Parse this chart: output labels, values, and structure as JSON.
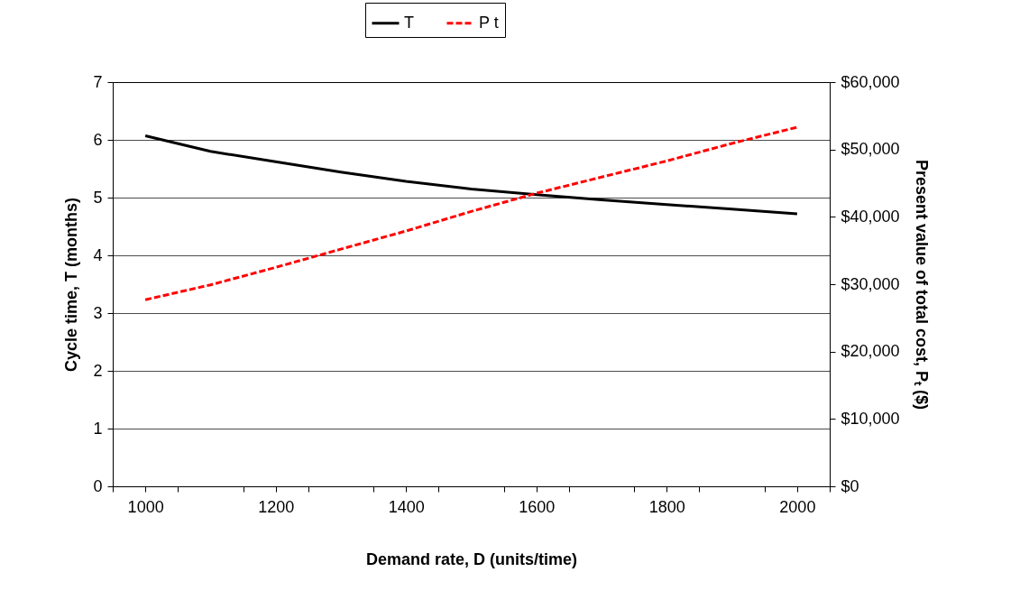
{
  "chart_data": {
    "type": "line",
    "xlabel": "Demand rate, D  (units/time)",
    "ylabel": "Cycle time, T  (months)",
    "y2label": "Present value of total cost, Pₜ  ($)",
    "x": [
      1000,
      1100,
      1200,
      1300,
      1400,
      1500,
      1600,
      1700,
      1800,
      1900,
      2000
    ],
    "series": [
      {
        "name": "T",
        "color": "#000000",
        "line_style": "solid",
        "values": [
          6.07,
          5.8,
          5.62,
          5.44,
          5.28,
          5.15,
          5.05,
          4.96,
          4.88,
          4.8,
          4.72
        ]
      },
      {
        "name": "P t",
        "color": "#ff0000",
        "line_style": "dashed",
        "axis": "y2",
        "values": [
          27700,
          29900,
          32500,
          35200,
          37900,
          40800,
          43500,
          45900,
          48300,
          50900,
          53300
        ]
      }
    ],
    "xlim": [
      950,
      2050
    ],
    "xticks": [
      {
        "value": 950,
        "label": null
      },
      1000,
      {
        "value": 1050,
        "label": null
      },
      {
        "value": 1150,
        "label": null
      },
      1200,
      {
        "value": 1250,
        "label": null
      },
      {
        "value": 1350,
        "label": null
      },
      1400,
      {
        "value": 1450,
        "label": null
      },
      {
        "value": 1550,
        "label": null
      },
      1600,
      {
        "value": 1650,
        "label": null
      },
      {
        "value": 1750,
        "label": null
      },
      1800,
      {
        "value": 1850,
        "label": null
      },
      {
        "value": 1950,
        "label": null
      },
      2000,
      {
        "value": 2050,
        "label": null
      }
    ],
    "ylim": [
      0,
      7
    ],
    "yticks": [
      0,
      1,
      2,
      3,
      4,
      5,
      6,
      7
    ],
    "y2lim": [
      0,
      60000
    ],
    "y2ticks": [
      {
        "value": 0,
        "label": "$0"
      },
      {
        "value": 10000,
        "label": "$10,000"
      },
      {
        "value": 20000,
        "label": "$20,000"
      },
      {
        "value": 30000,
        "label": "$30,000"
      },
      {
        "value": 40000,
        "label": "$40,000"
      },
      {
        "value": 50000,
        "label": "$50,000"
      },
      {
        "value": 60000,
        "label": "$60,000"
      }
    ],
    "grid": "y",
    "legend": "top",
    "marker": "none"
  }
}
